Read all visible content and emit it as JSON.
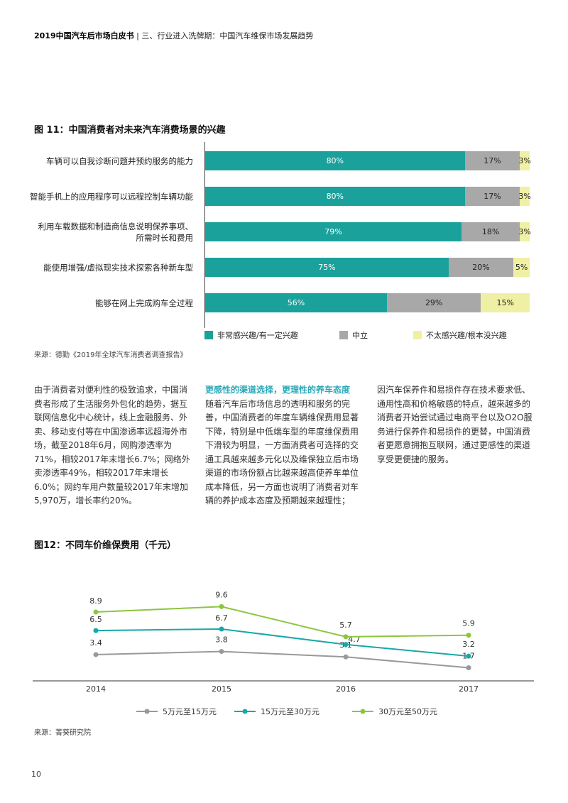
{
  "header": {
    "book_title": "2019中国汽车后市场白皮书",
    "separator": "|",
    "section": "三、行业进入洗牌期：中国汽车维保市场发展趋势"
  },
  "figure11": {
    "title": "图 11：中国消费者对未来汽车消费场景的兴趣",
    "source": "来源：德勤《2019年全球汽车消费者调查报告》",
    "colors": {
      "very_interested": "#1aa19c",
      "neutral": "#a8a8a8",
      "not_interested": "#f0f0a4"
    }
  },
  "figure12": {
    "title": "图12：不同车价维保费用（千元）",
    "source": "来源：菁葵研究院"
  },
  "chart_data": [
    {
      "type": "bar",
      "stacked": true,
      "orientation": "horizontal",
      "categories": [
        "车辆可以自我诊断问题并预约服务的能力",
        "智能手机上的应用程序可以远程控制车辆功能",
        "利用车载数据和制造商信息说明保养事项、所需时长和费用",
        "能使用增强/虚拟现实技术探索各种新车型",
        "能够在网上完成购车全过程"
      ],
      "category_lines": [
        [
          "车辆可以自我诊断问题并预约服务的能力"
        ],
        [
          "智能手机上的应用程序可以远程控制车辆功能"
        ],
        [
          "利用车载数据和制造商信息说明保养事项、",
          "所需时长和费用"
        ],
        [
          "能使用增强/虚拟现实技术探索各种新车型"
        ],
        [
          "能够在网上完成购车全过程"
        ]
      ],
      "series": [
        {
          "name": "非常感兴趣/有一定兴趣",
          "values": [
            80,
            80,
            79,
            75,
            56
          ],
          "color": "#1aa19c",
          "class": "seg-teal"
        },
        {
          "name": "中立",
          "values": [
            17,
            17,
            18,
            20,
            29
          ],
          "color": "#a8a8a8",
          "class": "seg-grey"
        },
        {
          "name": "不太感兴趣/根本没兴趣",
          "values": [
            3,
            3,
            3,
            5,
            15
          ],
          "color": "#f0f0a4",
          "class": "seg-yellow"
        }
      ],
      "value_suffix": "%",
      "legend": "bottom"
    },
    {
      "type": "line",
      "x": [
        "2014",
        "2015",
        "2016",
        "2017"
      ],
      "series": [
        {
          "name": "5万元至15万元",
          "values": [
            3.4,
            3.8,
            3.1,
            1.7
          ],
          "color": "#999999"
        },
        {
          "name": "15万元至30万元",
          "values": [
            6.5,
            6.7,
            4.7,
            3.2
          ],
          "color": "#17a8a8"
        },
        {
          "name": "30万元至50万元",
          "values": [
            8.9,
            9.6,
            5.7,
            5.9
          ],
          "color": "#8cc63f"
        }
      ],
      "ylim": [
        0,
        11
      ],
      "grid": false,
      "legend": "bottom"
    }
  ],
  "paragraphs": {
    "col1": "由于消费者对便利性的极致追求，中国消费者形成了生活服务外包化的趋势，据互联网信息化中心统计，线上金融服务、外卖、移动支付等在中国渗透率远超海外市场，截至2018年6月，网购渗透率为71%，相较2017年末增长6.7%；网络外卖渗透率49%，相较2017年末增长6.0%；网约车用户数量较2017年末增加5,970万，增长率约20%。",
    "col2_heading": "更感性的渠道选择，更理性的养车态度",
    "col2": "随着汽车后市场信息的透明和服务的完善，中国消费者的年度车辆维保费用显著下降，特别是中低端车型的年度维保费用下滑较为明显，一方面消费者可选择的交通工具越来越多元化以及维保独立后市场渠道的市场份额占比越来越高使养车单位成本降低，另一方面也说明了消费者对车辆的养护成本态度及预期越来越理性；",
    "col3": "因汽车保养件和易损件存在技术要求低、通用性高和价格敏感的特点，越来越多的消费者开始尝试通过电商平台以及O2O服务进行保养件和易损件的更替，中国消费者更愿意拥抱互联网，通过更感性的渠道享受更便捷的服务。"
  },
  "page_number": "10"
}
